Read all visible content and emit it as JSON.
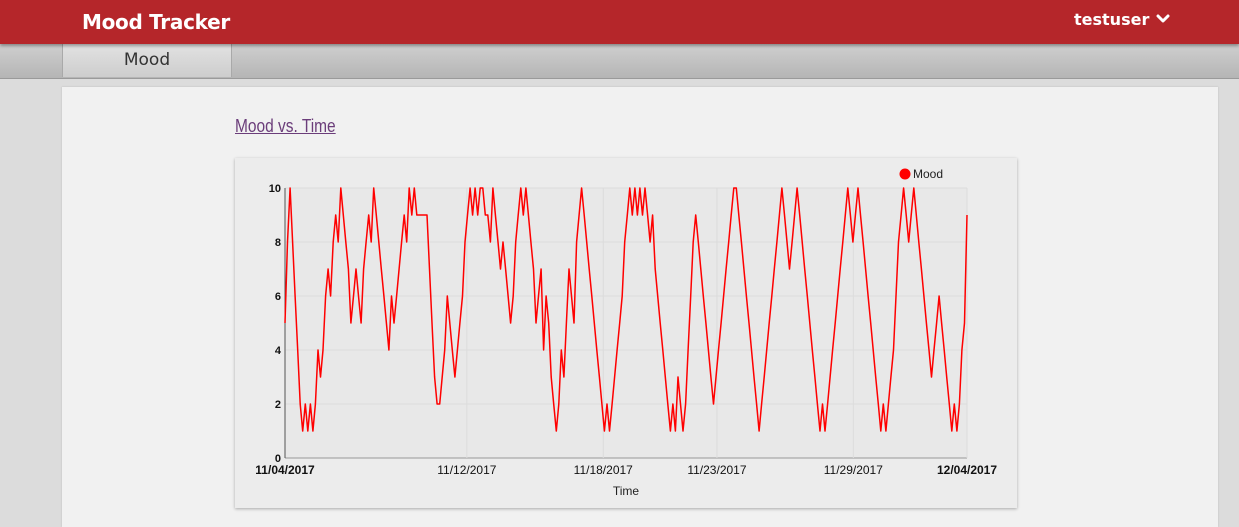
{
  "app": {
    "title": "Mood Tracker",
    "username": "testuser"
  },
  "icons": {
    "user_menu": "chevron-down-icon"
  },
  "tabs": [
    {
      "label": "Mood",
      "active": true
    }
  ],
  "chart_title": "Mood vs. Time",
  "chart_data": {
    "type": "line",
    "title": "",
    "xlabel": "Time",
    "ylabel": "",
    "ylim": [
      0,
      10
    ],
    "yticks": [
      0,
      2,
      4,
      6,
      8,
      10
    ],
    "xrange": [
      "11/04/2017",
      "12/04/2017"
    ],
    "xticks": [
      {
        "label": "11/04/2017",
        "bold": true
      },
      {
        "label": "11/12/2017",
        "bold": false
      },
      {
        "label": "11/18/2017",
        "bold": false
      },
      {
        "label": "11/23/2017",
        "bold": false
      },
      {
        "label": "11/29/2017",
        "bold": false
      },
      {
        "label": "12/04/2017",
        "bold": true
      }
    ],
    "legend": {
      "position": "top-right"
    },
    "grid": true,
    "series": [
      {
        "name": "Mood",
        "color": "#ff0000",
        "values": [
          5,
          8,
          10,
          8,
          6,
          4,
          2,
          1,
          2,
          1,
          2,
          1,
          2,
          4,
          3,
          4,
          6,
          7,
          6,
          8,
          9,
          8,
          10,
          9,
          8,
          7,
          5,
          6,
          7,
          6,
          5,
          7,
          8,
          9,
          8,
          10,
          9,
          8,
          7,
          6,
          5,
          4,
          6,
          5,
          6,
          7,
          8,
          9,
          8,
          10,
          9,
          10,
          9,
          9,
          9,
          9,
          9,
          7,
          5,
          3,
          2,
          2,
          3,
          4,
          6,
          5,
          4,
          3,
          4,
          5,
          6,
          8,
          9,
          10,
          9,
          10,
          9,
          10,
          10,
          9,
          9,
          8,
          10,
          9,
          8,
          7,
          8,
          7,
          6,
          5,
          6,
          8,
          9,
          10,
          9,
          10,
          9,
          8,
          7,
          5,
          6,
          7,
          4,
          6,
          5,
          3,
          2,
          1,
          2,
          4,
          3,
          5,
          7,
          6,
          5,
          8,
          9,
          10,
          9,
          8,
          7,
          6,
          5,
          4,
          3,
          2,
          1,
          2,
          1,
          2,
          3,
          4,
          5,
          6,
          8,
          9,
          10,
          9,
          10,
          9,
          10,
          9,
          10,
          9,
          8,
          9,
          7,
          6,
          5,
          4,
          3,
          2,
          1,
          2,
          1,
          3,
          2,
          1,
          2,
          4,
          6,
          8,
          9,
          8,
          7,
          6,
          5,
          4,
          3,
          2,
          3,
          4,
          5,
          6,
          7,
          8,
          9,
          10,
          10,
          9,
          8,
          7,
          6,
          5,
          4,
          3,
          2,
          1,
          2,
          3,
          4,
          5,
          6,
          7,
          8,
          9,
          10,
          9,
          8,
          7,
          8,
          9,
          10,
          9,
          8,
          7,
          6,
          5,
          4,
          3,
          2,
          1,
          2,
          1,
          2,
          3,
          4,
          5,
          6,
          7,
          8,
          9,
          10,
          9,
          8,
          9,
          10,
          9,
          8,
          7,
          6,
          5,
          4,
          3,
          2,
          1,
          2,
          1,
          2,
          3,
          4,
          6,
          8,
          9,
          10,
          9,
          8,
          9,
          10,
          9,
          8,
          7,
          6,
          5,
          4,
          3,
          4,
          5,
          6,
          5,
          4,
          3,
          2,
          1,
          2,
          1,
          2,
          4,
          5,
          9
        ]
      }
    ]
  }
}
